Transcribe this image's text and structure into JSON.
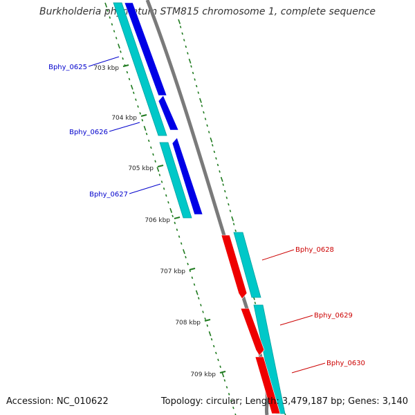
{
  "title": "Burkholderia phymatum STM815 chromosome 1, complete sequence",
  "footer": {
    "accession": "Accession: NC_010622",
    "topology": "Topology: circular; Length: 3,479,187 bp; Genes: 3,140"
  },
  "colors": {
    "backbone": "#7a7a7a",
    "tick": "#1e7a1e",
    "gene_plus": "#0000e6",
    "gene_minus": "#ee0000",
    "cds": "#00c8c8",
    "label_plus": "#0000cc",
    "label_minus": "#cc0000"
  },
  "kbp_labels": [
    "703 kbp",
    "704 kbp",
    "705 kbp",
    "706 kbp",
    "707 kbp",
    "708 kbp",
    "709 kbp"
  ],
  "genes": [
    {
      "name": "Bphy_0625",
      "strand": "plus"
    },
    {
      "name": "Bphy_0626",
      "strand": "plus"
    },
    {
      "name": "Bphy_0627",
      "strand": "plus"
    },
    {
      "name": "Bphy_0628",
      "strand": "minus"
    },
    {
      "name": "Bphy_0629",
      "strand": "minus"
    },
    {
      "name": "Bphy_0630",
      "strand": "minus"
    }
  ]
}
